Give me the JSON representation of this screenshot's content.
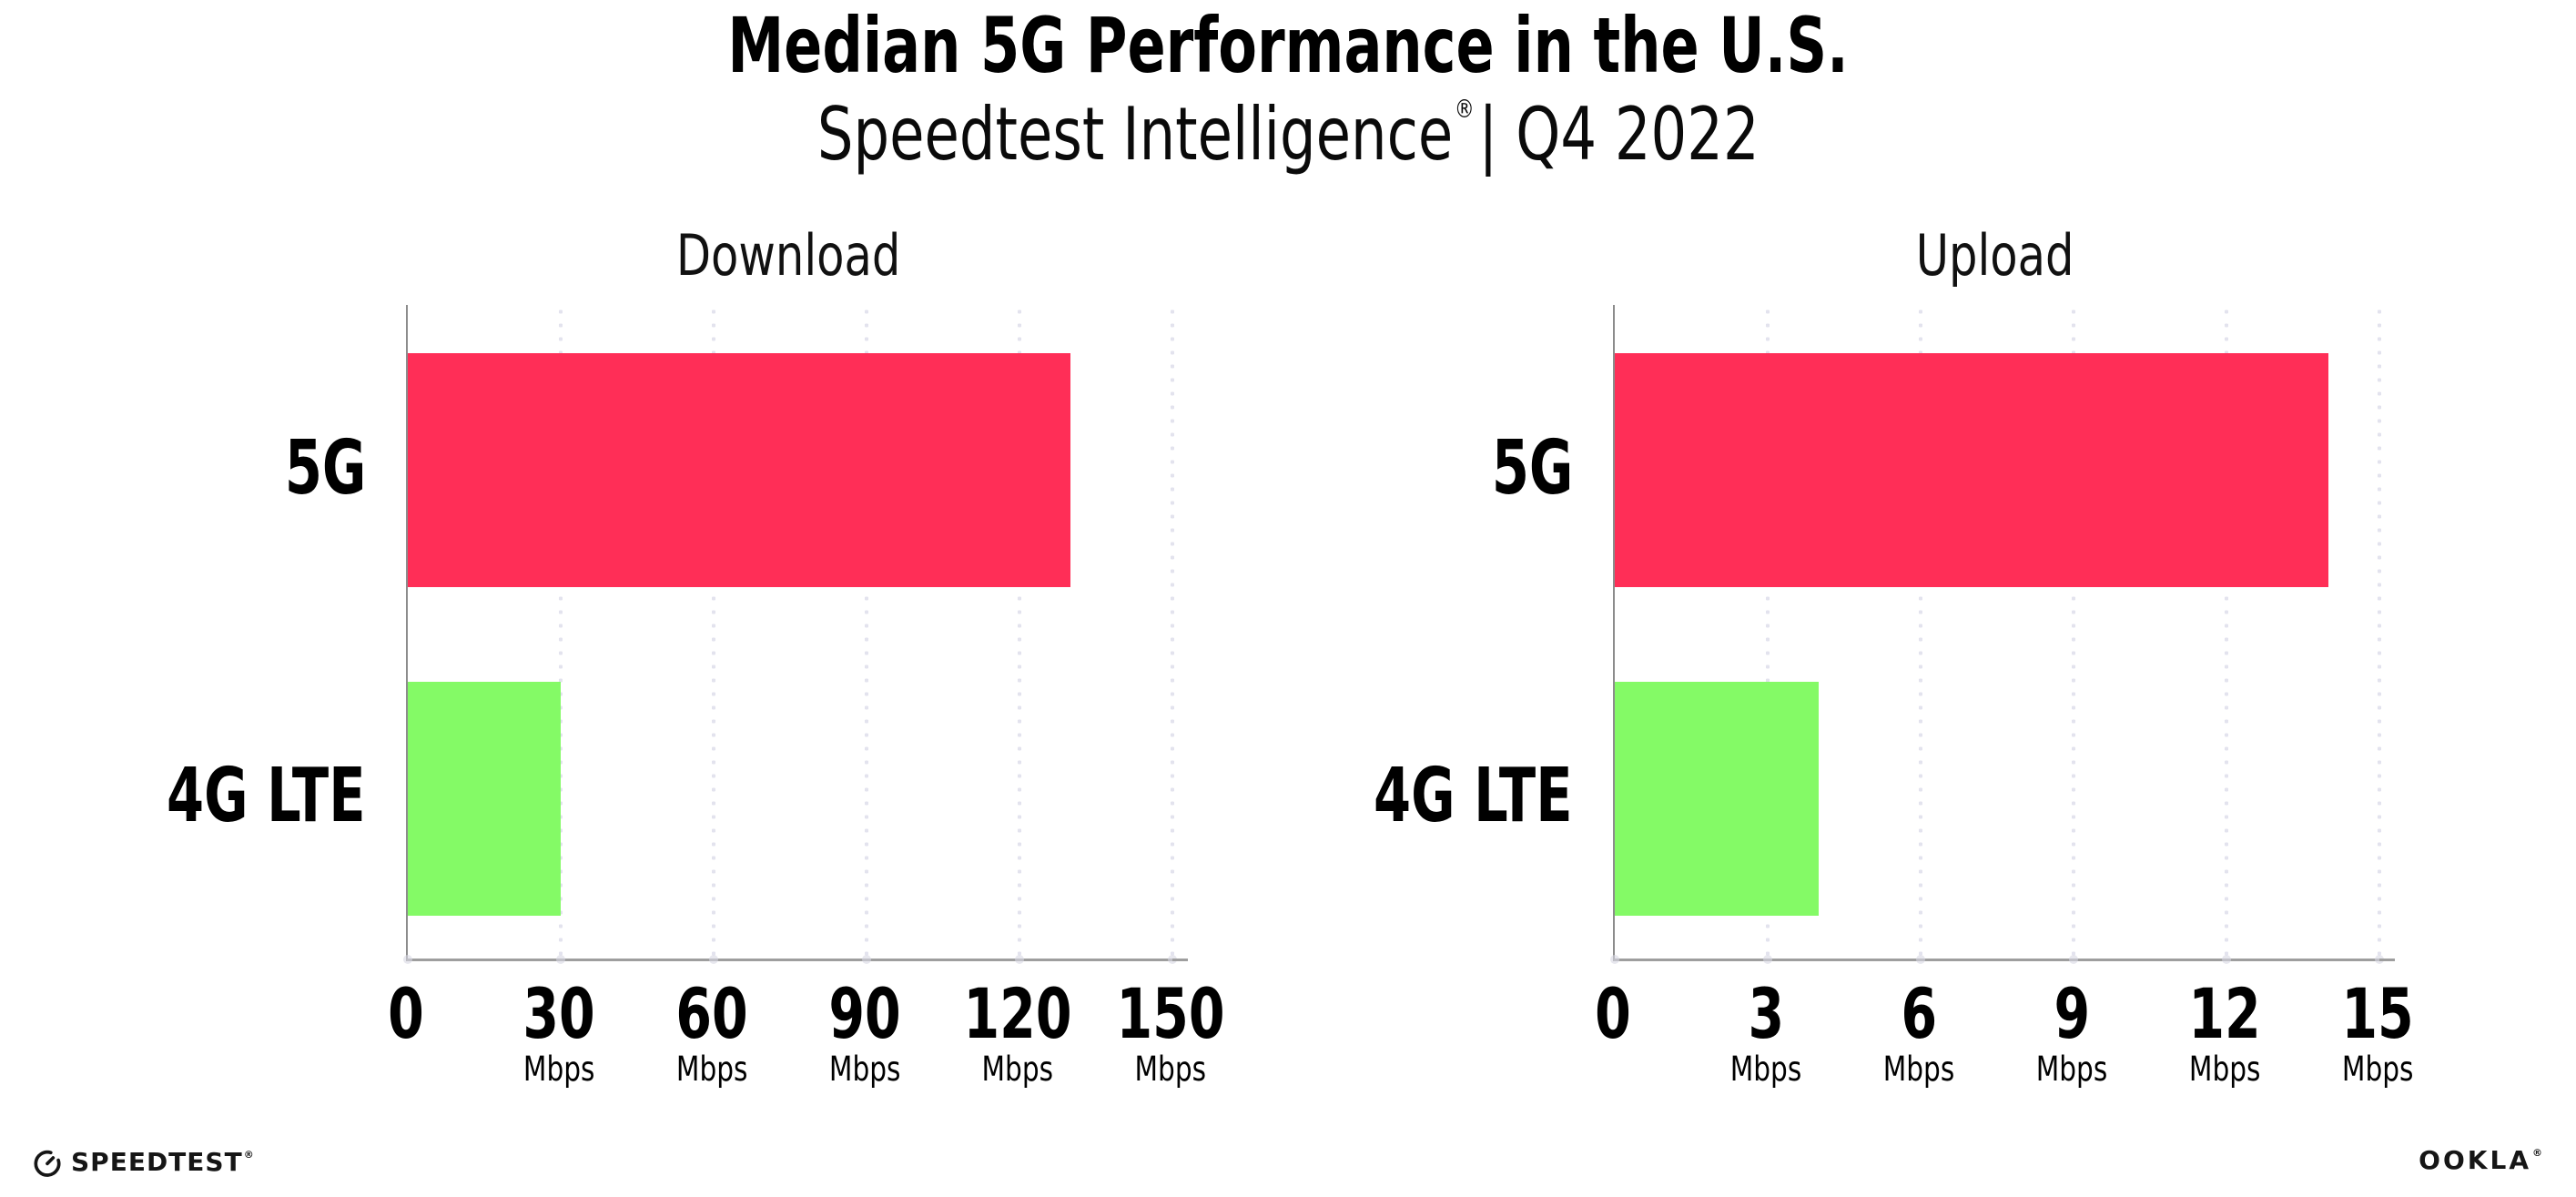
{
  "header": {
    "title": "Median 5G Performance in the U.S.",
    "subtitle_brand": "Speedtest Intelligence",
    "subtitle_reg": "®",
    "subtitle_rest": "| Q4 2022"
  },
  "chart_data": [
    {
      "type": "bar",
      "orientation": "horizontal",
      "title": "Download",
      "categories": [
        "5G",
        "4G LTE"
      ],
      "values": [
        130,
        30
      ],
      "unit": "Mbps",
      "xlim": [
        0,
        150
      ],
      "xticks": [
        0,
        30,
        60,
        90,
        120,
        150
      ],
      "bar_colors": [
        "#FF2E57",
        "#84FA66"
      ],
      "grid": "vertical-dotted",
      "legend": "none"
    },
    {
      "type": "bar",
      "orientation": "horizontal",
      "title": "Upload",
      "categories": [
        "5G",
        "4G LTE"
      ],
      "values": [
        14,
        4
      ],
      "unit": "Mbps",
      "xlim": [
        0,
        15
      ],
      "xticks": [
        0,
        3,
        6,
        9,
        12,
        15
      ],
      "bar_colors": [
        "#FF2E57",
        "#84FA66"
      ],
      "grid": "vertical-dotted",
      "legend": "none"
    }
  ],
  "footer": {
    "speedtest_wordmark": "SPEEDTEST",
    "speedtest_mark": "®",
    "ookla_wordmark": "OOKLA",
    "ookla_mark": "®"
  },
  "colors": {
    "bar_5g": "#FF2E57",
    "bar_4g_lte": "#84FA66",
    "gridline": "#E3E3EE",
    "axis": "#9E9E9E",
    "text": "#000000"
  }
}
